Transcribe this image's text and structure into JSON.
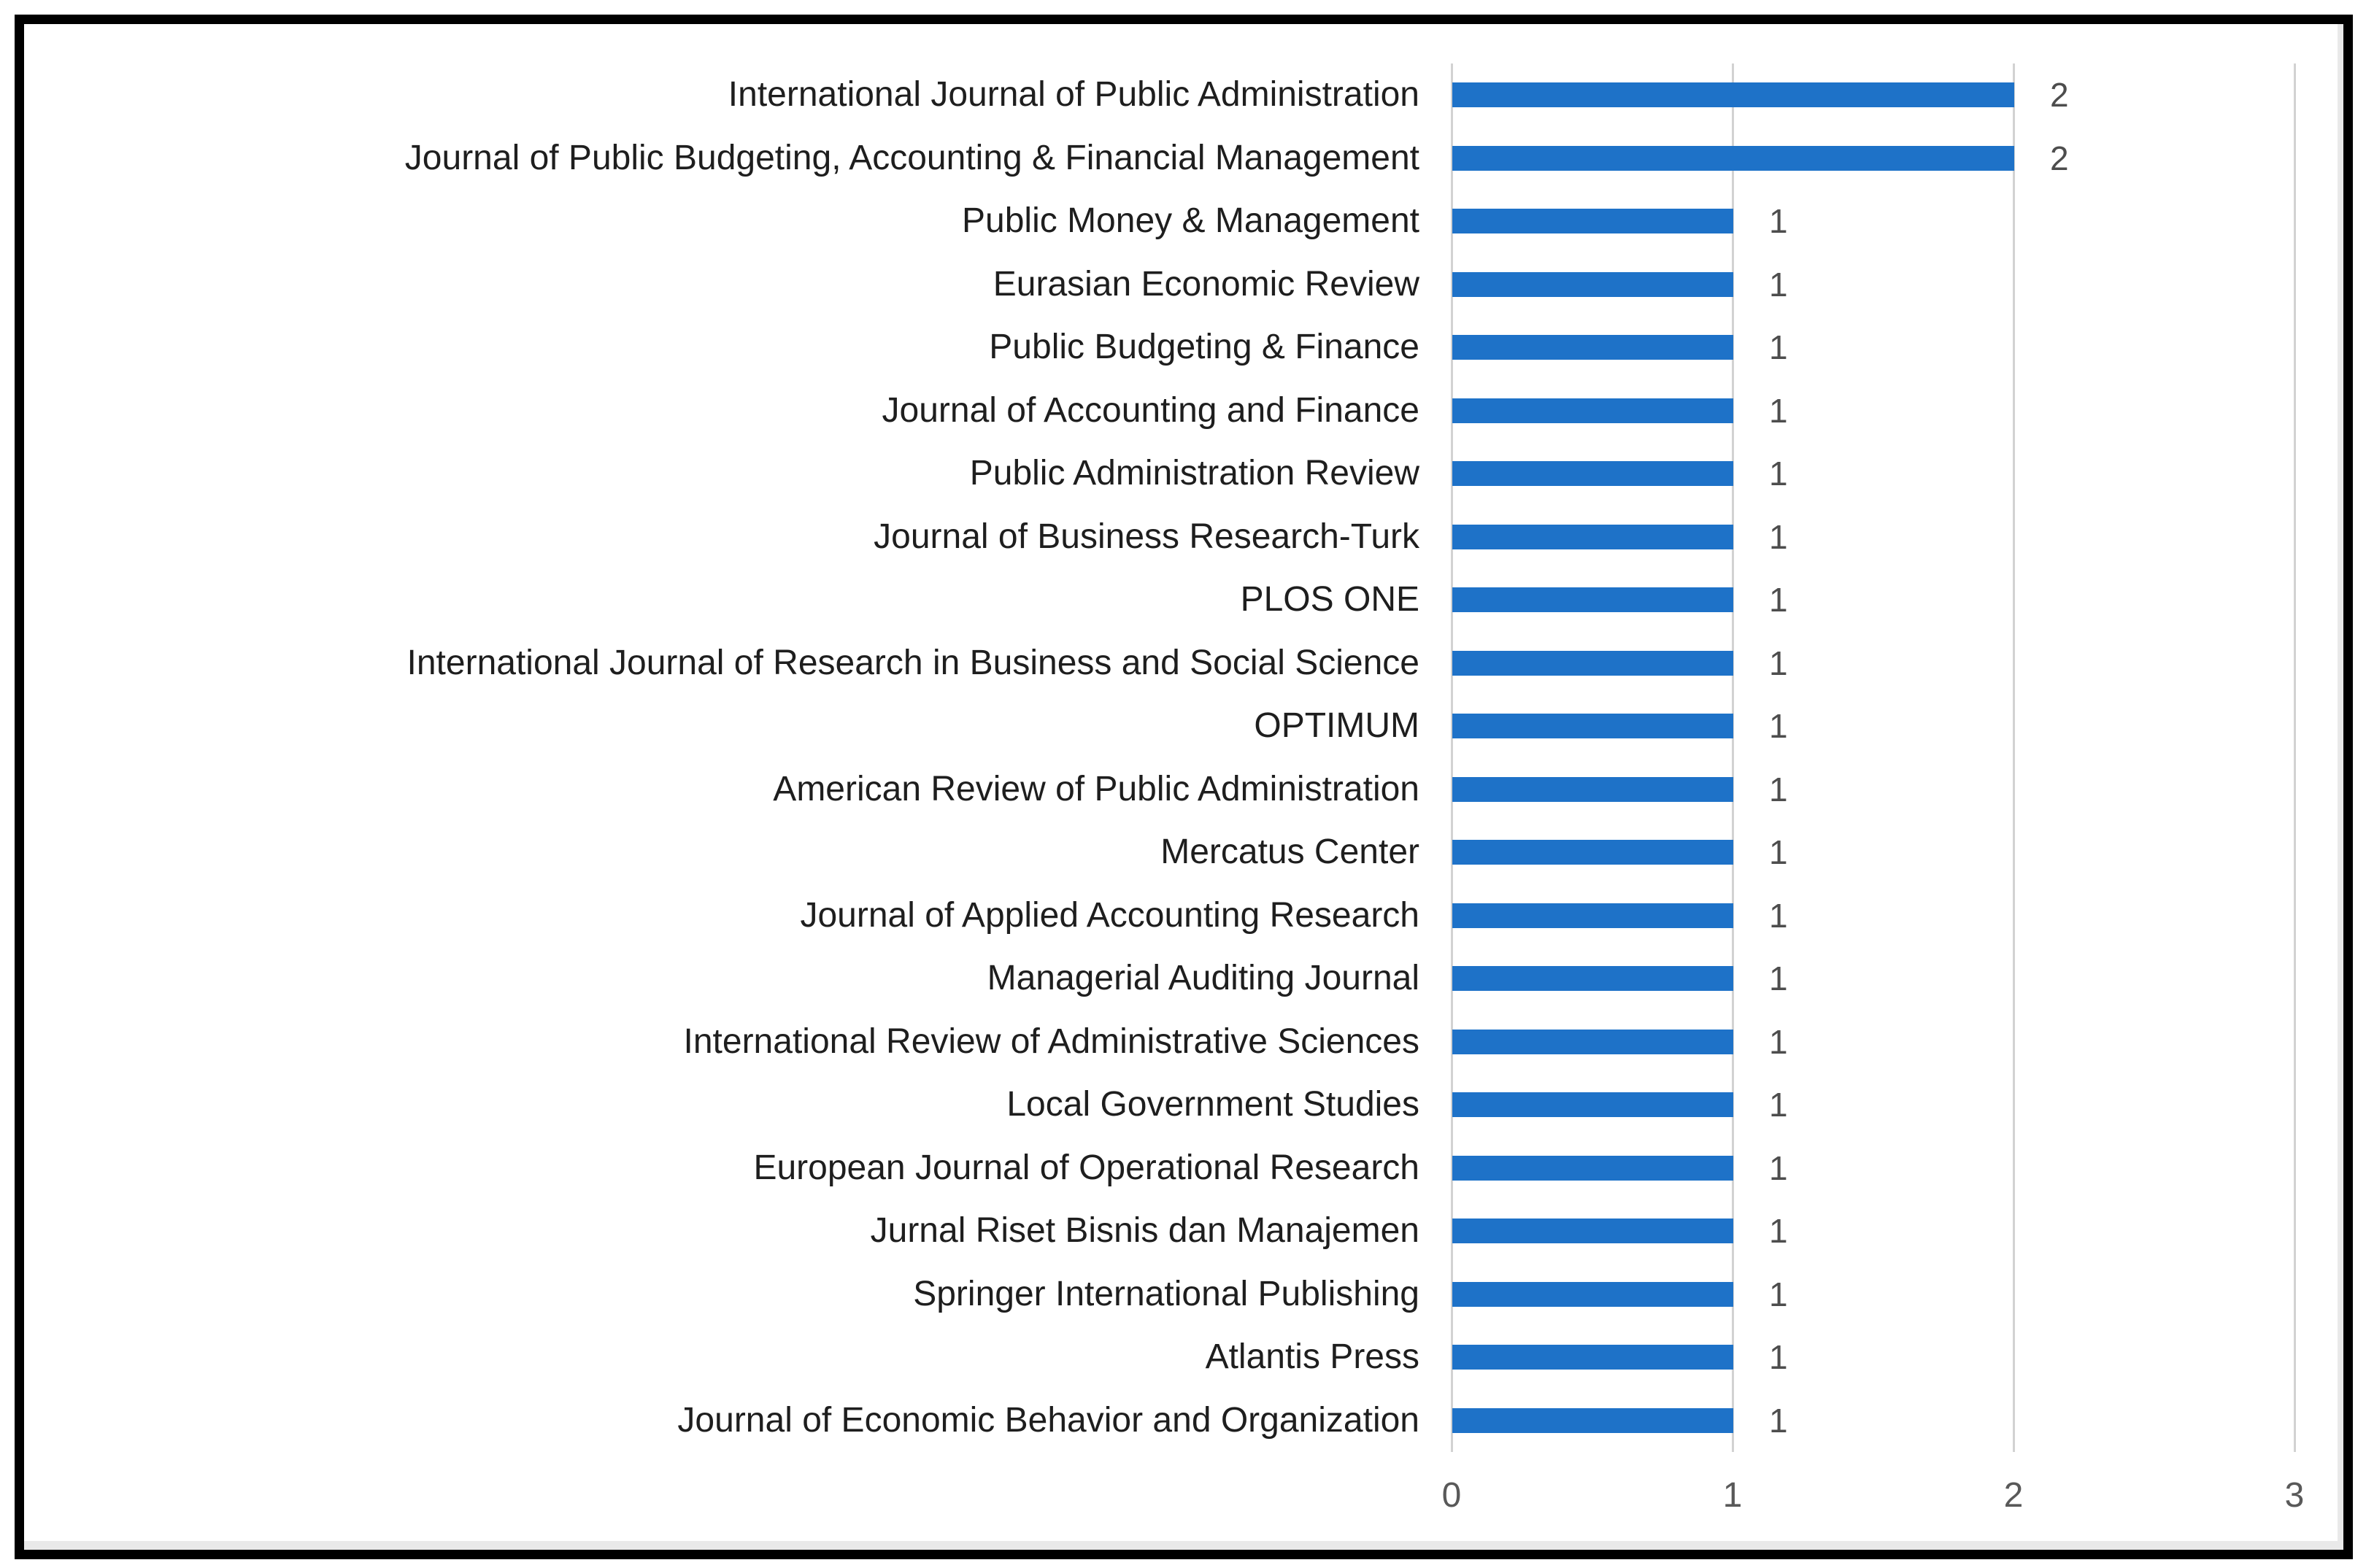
{
  "chart_data": {
    "type": "bar",
    "orientation": "horizontal",
    "title": "",
    "xlabel": "",
    "ylabel": "",
    "xlim": [
      0,
      3
    ],
    "x_ticks": [
      "0",
      "1",
      "2",
      "3"
    ],
    "grid": "vertical-gridlines-on",
    "legend": "none",
    "bar_color": "#1e72c8",
    "gridline_color": "#d2d2d2",
    "category_label_color": "#1e1e1e",
    "value_label_color": "#4d4d4d",
    "tick_label_color": "#595959",
    "categories": [
      "International Journal of Public Administration",
      "Journal of Public Budgeting, Accounting & Financial Management",
      "Public Money & Management",
      "Eurasian Economic Review",
      "Public Budgeting & Finance",
      "Journal of Accounting and Finance",
      "Public Administration Review",
      "Journal of Business Research-Turk",
      "PLOS ONE",
      "International Journal of Research in Business and Social Science",
      "OPTIMUM",
      "American Review of Public Administration",
      "Mercatus Center",
      "Journal of Applied Accounting Research",
      "Managerial Auditing Journal",
      "International Review of Administrative Sciences",
      "Local Government Studies",
      "European Journal of Operational Research",
      "Jurnal Riset Bisnis dan Manajemen",
      "Springer International Publishing",
      "Atlantis Press",
      "Journal of Economic Behavior and Organization"
    ],
    "values": [
      2,
      2,
      1,
      1,
      1,
      1,
      1,
      1,
      1,
      1,
      1,
      1,
      1,
      1,
      1,
      1,
      1,
      1,
      1,
      1,
      1,
      1
    ]
  }
}
